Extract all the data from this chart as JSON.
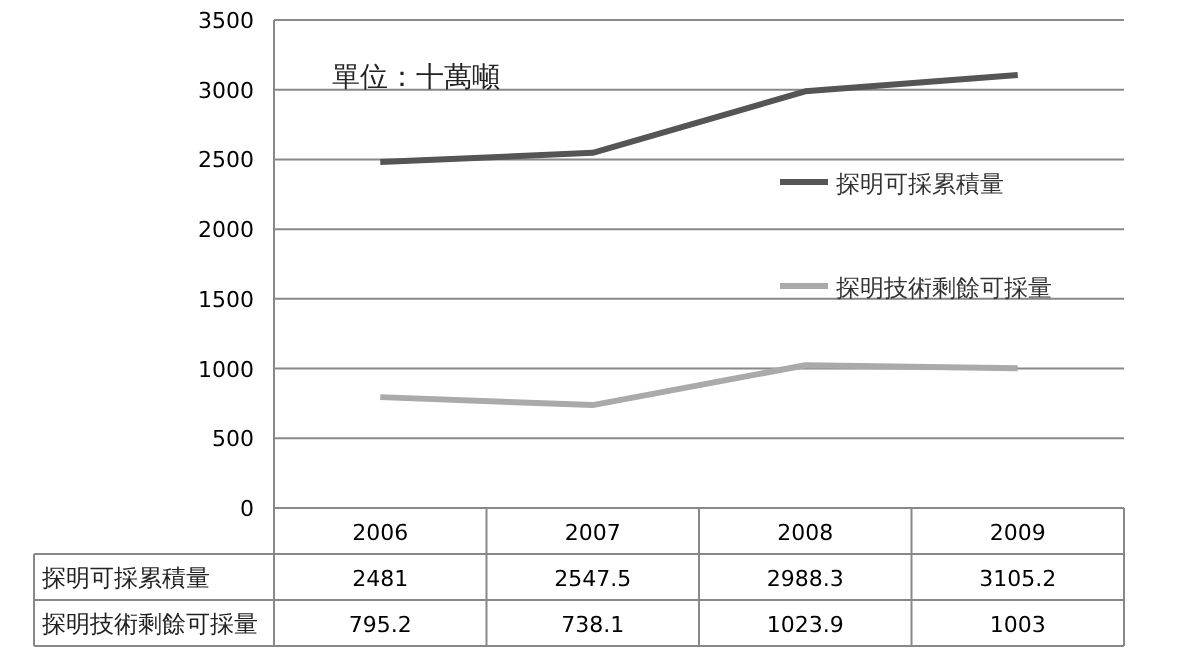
{
  "chart_data": {
    "type": "line",
    "categories": [
      "2006",
      "2007",
      "2008",
      "2009"
    ],
    "series": [
      {
        "name": "探明可採累積量",
        "color": "#555555",
        "values": [
          2481,
          2547.5,
          2988.3,
          3105.2
        ]
      },
      {
        "name": "探明技術剩餘可採量",
        "color": "#aaaaaa",
        "values": [
          795.2,
          738.1,
          1023.9,
          1003
        ]
      }
    ],
    "ylim": [
      0,
      3500
    ],
    "yticks": [
      0,
      500,
      1000,
      1500,
      2000,
      2500,
      3000,
      3500
    ],
    "grid": "y",
    "legend": "right",
    "data_labels": true,
    "marker": "none",
    "line_style": "solid",
    "annotations": [
      "單位：十萬噸"
    ]
  }
}
